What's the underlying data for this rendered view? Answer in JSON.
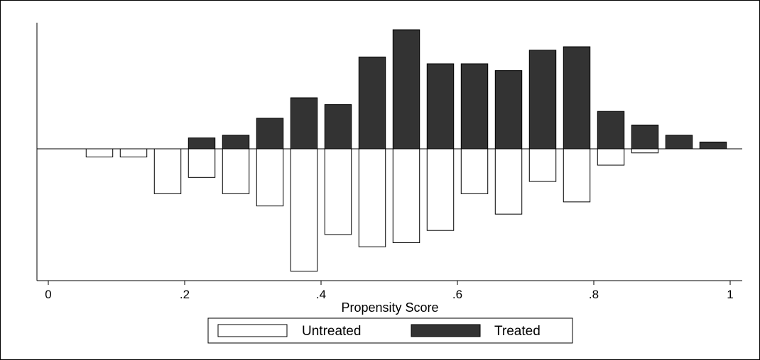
{
  "chart_data": {
    "type": "bar",
    "subtype": "mirrored-histogram",
    "title": "",
    "xlabel": "Propensity Score",
    "ylabel": "",
    "xlim": [
      -0.02,
      1.02
    ],
    "ylim": [
      -18,
      17.5
    ],
    "x_ticks": [
      {
        "value": 0,
        "label": "0"
      },
      {
        "value": 0.2,
        "label": ".2"
      },
      {
        "value": 0.4,
        "label": ".4"
      },
      {
        "value": 0.6,
        "label": ".6"
      },
      {
        "value": 0.8,
        "label": ".8"
      },
      {
        "value": 1,
        "label": "1"
      }
    ],
    "bin_width": 0.05,
    "bin_starts": [
      0.05,
      0.1,
      0.15,
      0.2,
      0.25,
      0.3,
      0.35,
      0.4,
      0.45,
      0.5,
      0.55,
      0.6,
      0.65,
      0.7,
      0.75,
      0.8,
      0.85,
      0.9,
      0.95
    ],
    "series": [
      {
        "name": "Untreated",
        "direction": "down",
        "fill": "#ffffff",
        "values": [
          1.2,
          1.2,
          6.6,
          4.2,
          6.6,
          8.4,
          18,
          12.6,
          14.4,
          13.8,
          12,
          6.6,
          9.6,
          4.8,
          7.8,
          2.4,
          0.6,
          0,
          0
        ]
      },
      {
        "name": "Treated",
        "direction": "up",
        "fill": "#333333",
        "values": [
          0,
          0,
          0,
          1.6,
          2,
          4.5,
          7.5,
          6.5,
          13.5,
          17.5,
          12.5,
          12.5,
          11.5,
          14.5,
          15,
          5.5,
          3.5,
          2,
          1
        ]
      }
    ],
    "grid": false,
    "legend_position": "bottom"
  }
}
